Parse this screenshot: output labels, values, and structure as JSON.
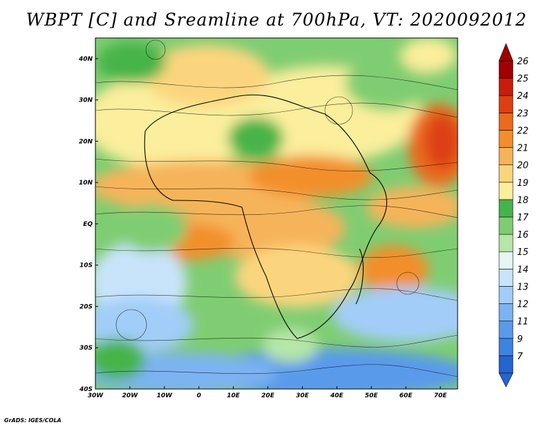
{
  "title": "WBPT [C] and Sreamline at 700hPa, VT: 2020092012",
  "credit": "GrADS: IGES/COLA",
  "map": {
    "variable": "WBPT",
    "units": "C",
    "level": "700hPa",
    "valid_time": "2020092012",
    "lon_range": [
      -30,
      75
    ],
    "lat_range": [
      -40,
      45
    ],
    "lon_ticks": [
      {
        "value": -30,
        "label": "30W"
      },
      {
        "value": -20,
        "label": "20W"
      },
      {
        "value": -10,
        "label": "10W"
      },
      {
        "value": 0,
        "label": "0"
      },
      {
        "value": 10,
        "label": "10E"
      },
      {
        "value": 20,
        "label": "20E"
      },
      {
        "value": 30,
        "label": "30E"
      },
      {
        "value": 40,
        "label": "40E"
      },
      {
        "value": 50,
        "label": "50E"
      },
      {
        "value": 60,
        "label": "60E"
      },
      {
        "value": 70,
        "label": "70E"
      }
    ],
    "lat_ticks": [
      {
        "value": 40,
        "label": "40N"
      },
      {
        "value": 30,
        "label": "30N"
      },
      {
        "value": 20,
        "label": "20N"
      },
      {
        "value": 10,
        "label": "10N"
      },
      {
        "value": 0,
        "label": "EQ"
      },
      {
        "value": -10,
        "label": "10S"
      },
      {
        "value": -20,
        "label": "20S"
      },
      {
        "value": -30,
        "label": "30S"
      },
      {
        "value": -40,
        "label": "40S"
      }
    ]
  },
  "colorbar": {
    "labels": [
      "7",
      "9",
      "11",
      "12",
      "13",
      "14",
      "15",
      "16",
      "17",
      "18",
      "19",
      "20",
      "21",
      "22",
      "23",
      "24",
      "25",
      "26"
    ],
    "colors": [
      "#2565cf",
      "#3c84e0",
      "#5a9aeb",
      "#7cb3f2",
      "#a2cdf8",
      "#c8e4fb",
      "#e6f6f2",
      "#b6e6a8",
      "#7fcd72",
      "#46b44a",
      "#fbee9c",
      "#fbd57e",
      "#f6b45a",
      "#f28f2c",
      "#ea6a1e",
      "#dd3f13",
      "#c81c0c",
      "#a00000"
    ]
  }
}
